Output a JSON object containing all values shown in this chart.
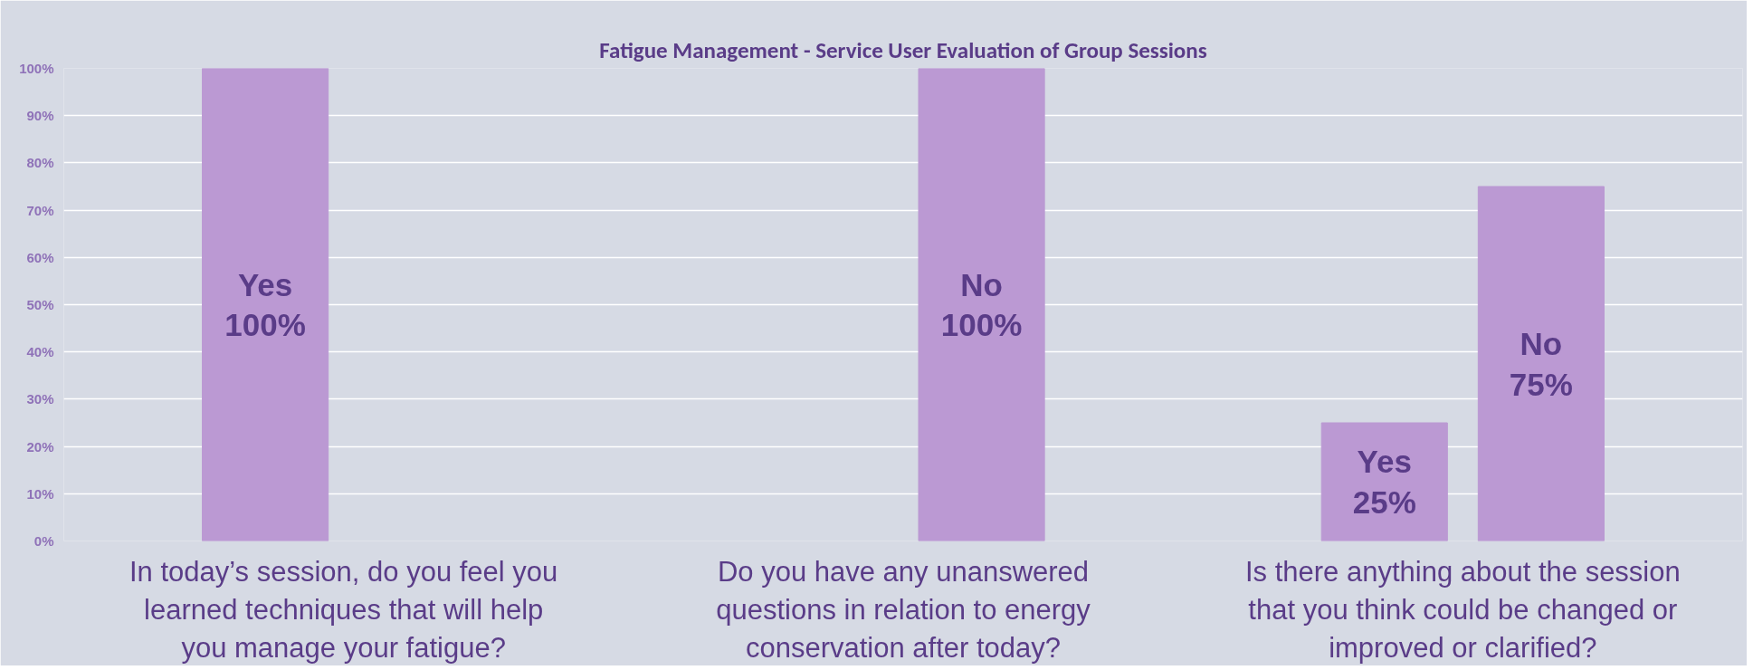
{
  "chart_data": {
    "type": "bar",
    "title": "Fatigue Management - Service User Evaluation of Group Sessions",
    "categories": [
      "In today’s session, do you feel you learned techniques that will help you manage your fatigue?",
      "Do you have any unanswered questions in relation to energy conservation after today?",
      "Is there anything about the session that you think could be changed or improved or clarified?"
    ],
    "series": [
      {
        "name": "Yes",
        "color": "#bb99d3",
        "values": [
          100,
          null,
          25
        ],
        "value_labels": [
          "100%",
          null,
          "25%"
        ]
      },
      {
        "name": "No",
        "color": "#bb99d3",
        "values": [
          null,
          100,
          75
        ],
        "value_labels": [
          null,
          "100%",
          "75%"
        ]
      }
    ],
    "ylim": [
      0,
      100
    ],
    "yticks": [
      {
        "value": 0,
        "label": "0%"
      },
      {
        "value": 10,
        "label": "10%"
      },
      {
        "value": 20,
        "label": "20%"
      },
      {
        "value": 30,
        "label": "30%"
      },
      {
        "value": 40,
        "label": "40%"
      },
      {
        "value": 50,
        "label": "50%"
      },
      {
        "value": 60,
        "label": "60%"
      },
      {
        "value": 70,
        "label": "70%"
      },
      {
        "value": 80,
        "label": "80%"
      },
      {
        "value": 90,
        "label": "90%"
      },
      {
        "value": 100,
        "label": "100%"
      }
    ],
    "grid": "y"
  }
}
